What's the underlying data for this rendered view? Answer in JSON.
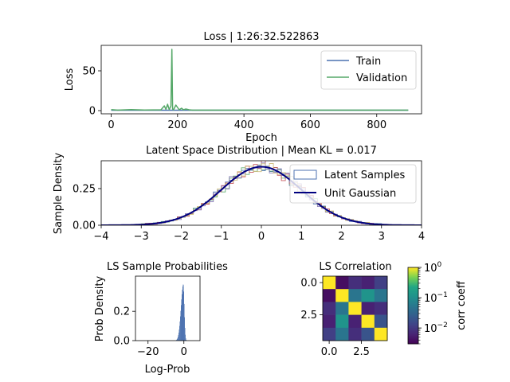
{
  "colors": {
    "train": "#4c72b0",
    "validation": "#55a868",
    "gaussian": "#000080",
    "latent": [
      "#4c72b0",
      "#55a868",
      "#c44e52",
      "#8172b3",
      "#ccb974"
    ]
  },
  "chart_data": [
    {
      "type": "line",
      "title": "Loss | 1:26:32.522863",
      "xlabel": "Epoch",
      "ylabel": "Loss",
      "xlim": [
        -30,
        935
      ],
      "ylim": [
        -4,
        82
      ],
      "xticks": [
        "0",
        "200",
        "400",
        "600",
        "800"
      ],
      "xtick_values": [
        0,
        200,
        400,
        600,
        800
      ],
      "yticks": [
        "0",
        "50"
      ],
      "ytick_values": [
        0,
        50
      ],
      "legend": "top-right",
      "grid": false,
      "series": [
        {
          "name": "Train",
          "x": [
            0,
            895
          ],
          "values": [
            0.5,
            0.5
          ]
        },
        {
          "name": "Validation",
          "x": [
            0,
            20,
            60,
            100,
            150,
            160,
            165,
            170,
            175,
            180,
            183,
            185,
            188,
            195,
            205,
            212,
            218,
            225,
            235,
            245,
            300,
            400,
            500,
            600,
            700,
            800,
            895
          ],
          "values": [
            1.2,
            0.6,
            1.2,
            0.8,
            1.0,
            6.0,
            1.5,
            8.0,
            1.2,
            6.0,
            77.0,
            2.0,
            1.0,
            7.0,
            1.0,
            3.0,
            1.0,
            2.0,
            1.0,
            0.6,
            0.6,
            0.6,
            0.6,
            0.6,
            0.6,
            0.6,
            0.6
          ]
        }
      ]
    },
    {
      "type": "line",
      "title": "Latent Space Distribution | Mean KL = 0.017",
      "xlabel": "",
      "ylabel": "Sample Density",
      "xlim": [
        -4,
        4
      ],
      "ylim": [
        0,
        0.44
      ],
      "xticks": [
        "−4",
        "−3",
        "−2",
        "−1",
        "0",
        "1",
        "2",
        "3",
        "4"
      ],
      "xtick_values": [
        -4,
        -3,
        -2,
        -1,
        0,
        1,
        2,
        3,
        4
      ],
      "yticks": [
        "0.00",
        "0.25"
      ],
      "ytick_values": [
        0,
        0.25
      ],
      "legend": "top-right",
      "series": [
        {
          "name": "Latent Samples",
          "kind": "step-histogram",
          "dims": 5,
          "range": [
            -3.0,
            3.0
          ]
        },
        {
          "name": "Unit Gaussian",
          "kind": "normal-pdf",
          "mean": 0,
          "std": 1
        }
      ]
    },
    {
      "type": "bar",
      "title": "LS Sample Probabilities",
      "xlabel": "Log-Prob",
      "ylabel": "Prob Density",
      "xlim": [
        -27,
        9
      ],
      "ylim": [
        0,
        0.44
      ],
      "xticks": [
        "−20",
        "0"
      ],
      "xtick_values": [
        -20,
        0
      ],
      "yticks": [
        "0.0",
        "0.2"
      ],
      "ytick_values": [
        0,
        0.2
      ],
      "peak": {
        "center": -0.3,
        "left_width": 1.3,
        "right_width": 0.55,
        "height": 0.385
      }
    },
    {
      "type": "heatmap",
      "title": "LS Correlation",
      "xticks": [
        "0.0",
        "2.5"
      ],
      "xtick_values": [
        0,
        2.5
      ],
      "yticks": [
        "0.0",
        "2.5"
      ],
      "ytick_values": [
        0,
        2.5
      ],
      "matrix": [
        [
          1.0,
          0.004,
          0.008,
          0.006,
          0.012
        ],
        [
          0.004,
          1.0,
          0.05,
          0.12,
          0.05
        ],
        [
          0.008,
          0.05,
          1.0,
          0.006,
          0.008
        ],
        [
          0.006,
          0.12,
          0.006,
          1.0,
          0.02
        ],
        [
          0.012,
          0.05,
          0.008,
          0.02,
          1.0
        ]
      ],
      "colorbar": {
        "label": "corr coeff",
        "scale": "log",
        "range": [
          0.003,
          1.0
        ],
        "ticks": [
          {
            "value": 1,
            "base": "10",
            "exp": "0"
          },
          {
            "value": 0.1,
            "base": "10",
            "exp": "−1"
          },
          {
            "value": 0.01,
            "base": "10",
            "exp": "−2"
          }
        ]
      }
    }
  ]
}
